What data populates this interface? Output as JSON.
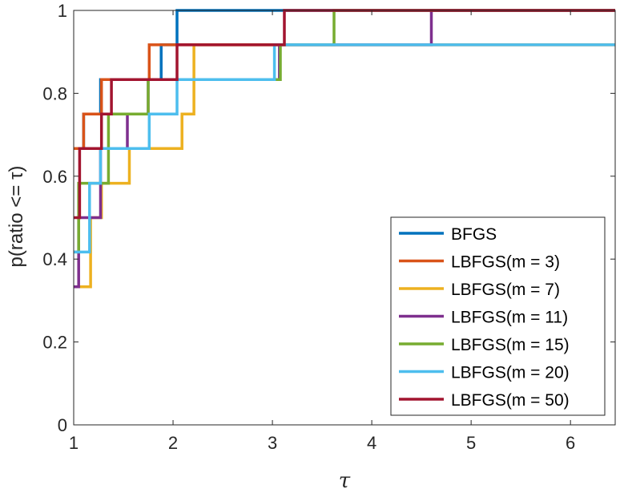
{
  "chart_data": {
    "type": "line",
    "step": true,
    "xlabel": "τ",
    "ylabel": "p(ratio <= τ)",
    "xlim": [
      1,
      6.45
    ],
    "ylim": [
      0,
      1
    ],
    "xticks": [
      "1",
      "2",
      "3",
      "4",
      "5",
      "6"
    ],
    "yticks": [
      "0",
      "0.2",
      "0.4",
      "0.6",
      "0.8",
      "1"
    ],
    "grid": false,
    "legend_position": "bottom-right",
    "series": [
      {
        "name": "BFGS",
        "color": "#0072BD",
        "x": [
          1,
          1.1,
          1.27,
          1.88,
          2.04,
          6.45
        ],
        "y": [
          0.667,
          0.75,
          0.833,
          0.917,
          1.0,
          1.0
        ]
      },
      {
        "name": "LBFGS(m = 3)",
        "color": "#D95319",
        "x": [
          1,
          1.1,
          1.28,
          1.76,
          2.04,
          6.45
        ],
        "y": [
          0.667,
          0.75,
          0.833,
          0.917,
          0.917,
          0.917
        ]
      },
      {
        "name": "LBFGS(m = 7)",
        "color": "#EDB120",
        "x": [
          1,
          1.17,
          1.28,
          1.56,
          1.76,
          2.09,
          2.21,
          5.51,
          6.45
        ],
        "y": [
          0.333,
          0.5,
          0.583,
          0.667,
          0.667,
          0.75,
          0.917,
          0.917,
          0.917
        ]
      },
      {
        "name": "LBFGS(m = 11)",
        "color": "#7E2F8E",
        "x": [
          1,
          1.05,
          1.27,
          1.54,
          1.75,
          2.79,
          3.07,
          4.6,
          6.45
        ],
        "y": [
          0.333,
          0.5,
          0.667,
          0.75,
          0.833,
          0.833,
          0.917,
          1.0,
          1.0
        ]
      },
      {
        "name": "LBFGS(m = 15)",
        "color": "#77AC30",
        "x": [
          1,
          1.05,
          1.35,
          1.75,
          3.08,
          3.62,
          6.45
        ],
        "y": [
          0.417,
          0.583,
          0.75,
          0.833,
          0.917,
          1.0,
          1.0
        ]
      },
      {
        "name": "LBFGS(m = 20)",
        "color": "#4DBEEE",
        "x": [
          1,
          1.16,
          1.27,
          1.76,
          2.04,
          3.02,
          3.12,
          6.45
        ],
        "y": [
          0.417,
          0.583,
          0.667,
          0.75,
          0.833,
          0.917,
          0.917,
          0.917
        ]
      },
      {
        "name": "LBFGS(m = 50)",
        "color": "#A2142F",
        "x": [
          1,
          1.06,
          1.28,
          1.38,
          2.04,
          3.12,
          6.45
        ],
        "y": [
          0.5,
          0.667,
          0.75,
          0.833,
          0.917,
          1.0,
          1.0
        ]
      }
    ]
  }
}
